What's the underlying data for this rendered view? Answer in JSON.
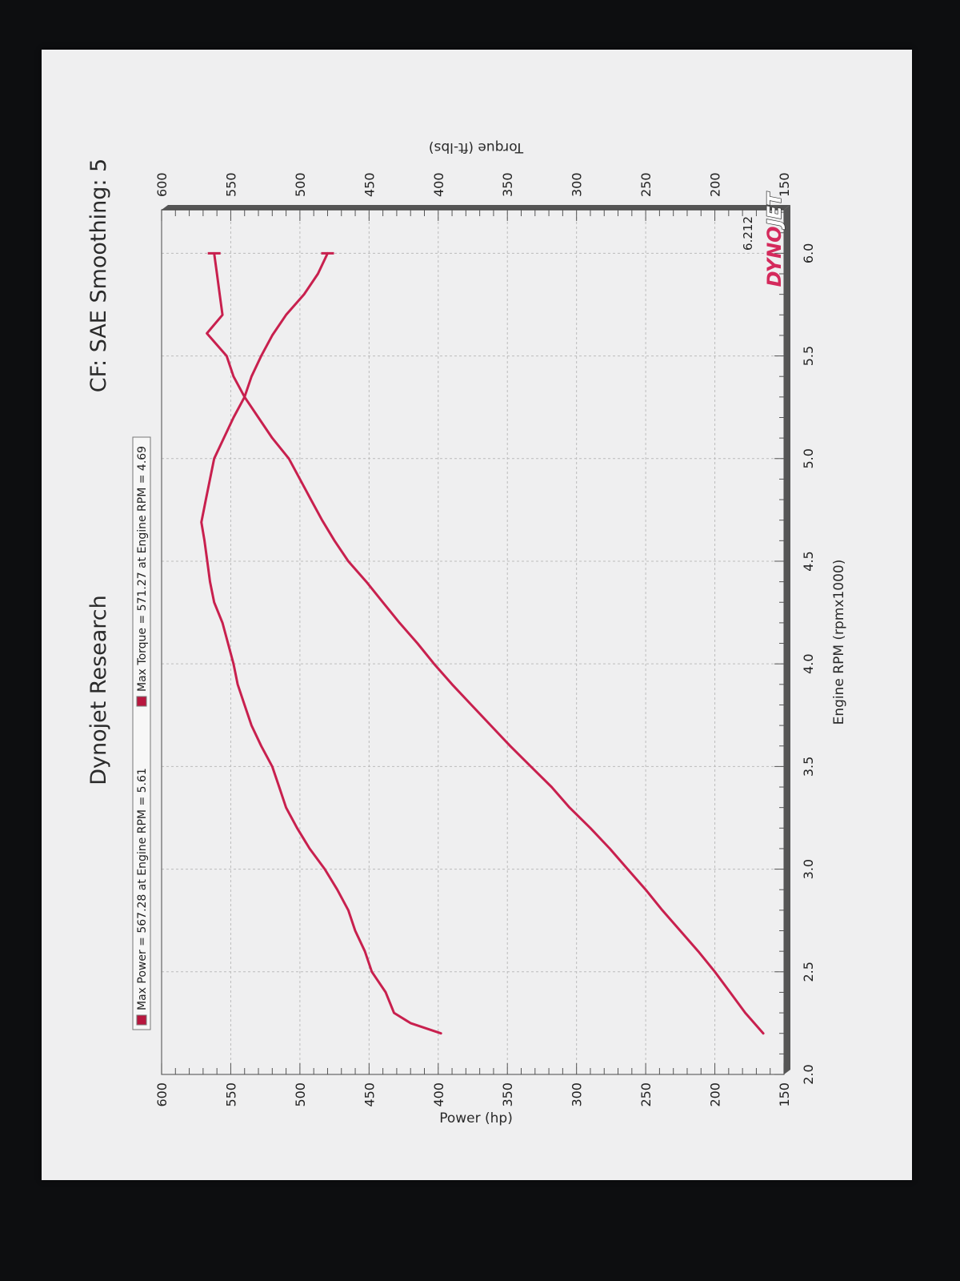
{
  "header": {
    "title_left": "Dynojet Research",
    "title_right": "CF: SAE Smoothing: 5"
  },
  "legend": {
    "power": "Max Power = 567.28 at Engine RPM = 5.61",
    "torque": "Max Torque = 571.27 at Engine RPM = 4.69"
  },
  "marker_label": "6.212",
  "logo": {
    "part1": "DYNO",
    "part2": "JET"
  },
  "colors": {
    "curve": "#c8204e",
    "legend_swatch": "#b8163e",
    "grid": "#bcbcbc",
    "frame": "#555555"
  },
  "chart_data": {
    "type": "line",
    "xlabel": "Engine RPM (rpmx1000)",
    "ylabel_left": "Power (hp)",
    "ylabel_right": "Torque (ft-lbs)",
    "xlim": [
      2.0,
      6.212
    ],
    "ylim": [
      150,
      600
    ],
    "x_ticks": [
      "2.0",
      "2.5",
      "3.0",
      "3.5",
      "4.0",
      "4.5",
      "5.0",
      "5.5",
      "6.0"
    ],
    "y_ticks_left": [
      "150",
      "200",
      "250",
      "300",
      "350",
      "400",
      "450",
      "500",
      "550",
      "600"
    ],
    "y_ticks_right": [
      "150",
      "200",
      "250",
      "300",
      "350",
      "400",
      "450",
      "500",
      "550",
      "600"
    ],
    "orientation": "rotated 90 degrees counter-clockwise on the page",
    "grid": true,
    "legend_position": "top",
    "series": [
      {
        "name": "Power",
        "x": [
          2.2,
          2.3,
          2.4,
          2.5,
          2.6,
          2.7,
          2.8,
          2.9,
          3.0,
          3.1,
          3.2,
          3.3,
          3.4,
          3.5,
          3.6,
          3.7,
          3.8,
          3.9,
          4.0,
          4.1,
          4.2,
          4.3,
          4.4,
          4.5,
          4.6,
          4.7,
          4.8,
          4.9,
          5.0,
          5.1,
          5.2,
          5.3,
          5.4,
          5.5,
          5.61,
          5.7,
          5.8,
          5.9,
          6.0
        ],
        "values": [
          165,
          178,
          189,
          200,
          212,
          225,
          238,
          250,
          263,
          276,
          290,
          305,
          318,
          333,
          348,
          362,
          376,
          390,
          403,
          415,
          428,
          440,
          452,
          465,
          475,
          484,
          492,
          500,
          508,
          520,
          530,
          540,
          548,
          553,
          567.28,
          556,
          558,
          560,
          562
        ]
      },
      {
        "name": "Torque",
        "x": [
          2.2,
          2.25,
          2.3,
          2.4,
          2.5,
          2.6,
          2.7,
          2.8,
          2.9,
          3.0,
          3.1,
          3.2,
          3.3,
          3.4,
          3.5,
          3.6,
          3.7,
          3.8,
          3.9,
          4.0,
          4.1,
          4.2,
          4.3,
          4.4,
          4.5,
          4.6,
          4.69,
          4.8,
          4.9,
          5.0,
          5.1,
          5.2,
          5.3,
          5.4,
          5.5,
          5.6,
          5.7,
          5.8,
          5.9,
          6.0
        ],
        "values": [
          398,
          420,
          432,
          438,
          448,
          453,
          460,
          465,
          473,
          482,
          493,
          502,
          510,
          515,
          520,
          528,
          535,
          540,
          545,
          548,
          552,
          556,
          562,
          565,
          567,
          569,
          571.27,
          568,
          565,
          562,
          555,
          548,
          540,
          535,
          528,
          520,
          510,
          497,
          487,
          480
        ]
      }
    ]
  }
}
